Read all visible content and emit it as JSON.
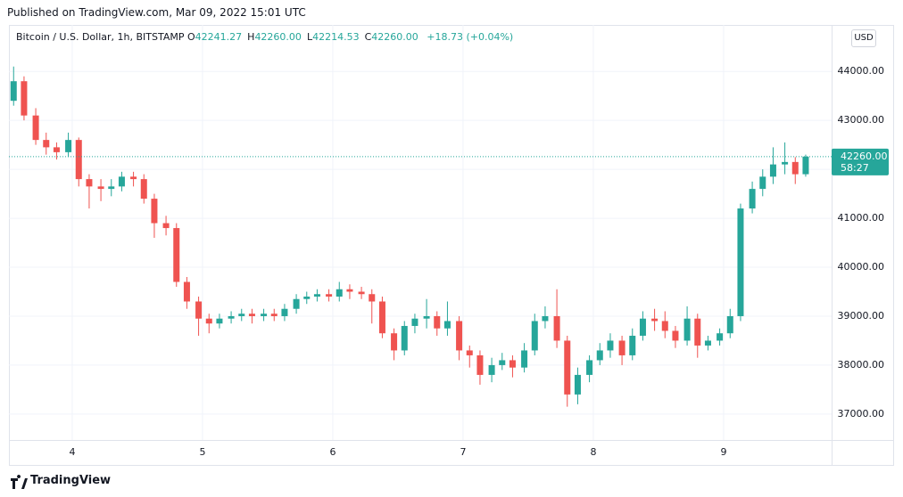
{
  "header": "Published on TradingView.com, Mar 09, 2022 15:01 UTC",
  "footer": "TradingView",
  "chart_data": {
    "type": "candlestick",
    "title": "Bitcoin / U.S. Dollar, 1h, BITSTAMP",
    "legend": [
      {
        "key": "O",
        "value": "42241.27"
      },
      {
        "key": "H",
        "value": "42260.00"
      },
      {
        "key": "L",
        "value": "42214.53"
      },
      {
        "key": "C",
        "value": "42260.00"
      }
    ],
    "change": "+18.73 (+0.04%)",
    "currency": "USD",
    "last_price": {
      "value": 42260,
      "label": "42260.00"
    },
    "countdown": "58:27",
    "up_color": "#26a69a",
    "down_color": "#ef5350",
    "grid": true,
    "x": [
      3.55,
      3.63,
      3.72,
      3.8,
      3.88,
      3.97,
      4.05,
      4.13,
      4.22,
      4.3,
      4.38,
      4.47,
      4.55,
      4.63,
      4.72,
      4.8,
      4.88,
      4.97,
      5.05,
      5.13,
      5.22,
      5.3,
      5.38,
      5.47,
      5.55,
      5.63,
      5.72,
      5.8,
      5.88,
      5.97,
      6.05,
      6.13,
      6.22,
      6.3,
      6.38,
      6.47,
      6.55,
      6.63,
      6.72,
      6.8,
      6.88,
      6.97,
      7.05,
      7.13,
      7.22,
      7.3,
      7.38,
      7.47,
      7.55,
      7.63,
      7.72,
      7.8,
      7.88,
      7.97,
      8.05,
      8.13,
      8.22,
      8.3,
      8.38,
      8.47,
      8.55,
      8.63,
      8.72,
      8.8,
      8.88,
      8.97,
      9.05,
      9.13,
      9.22,
      9.3,
      9.38,
      9.47,
      9.55,
      9.63
    ],
    "open": [
      43400,
      43800,
      43100,
      42600,
      42450,
      42350,
      42600,
      41800,
      41650,
      41600,
      41650,
      41850,
      41800,
      41400,
      40900,
      40800,
      39700,
      39300,
      38950,
      38850,
      38950,
      39000,
      39050,
      39000,
      39050,
      39000,
      39150,
      39350,
      39400,
      39450,
      39400,
      39550,
      39500,
      39450,
      39300,
      38650,
      38300,
      38800,
      38950,
      39000,
      38750,
      38900,
      38300,
      38200,
      37800,
      38000,
      38100,
      37950,
      38300,
      38900,
      39000,
      38500,
      37400,
      37800,
      38100,
      38300,
      38500,
      38200,
      38600,
      38950,
      38900,
      38700,
      38500,
      38950,
      38400,
      38500,
      38650,
      39000,
      41200,
      41600,
      41850,
      42100,
      42150,
      41900
    ],
    "high": [
      44100,
      43900,
      43250,
      42750,
      42550,
      42750,
      42650,
      41900,
      41800,
      41800,
      41950,
      41950,
      41900,
      41500,
      41050,
      40900,
      39800,
      39400,
      39050,
      39050,
      39100,
      39150,
      39150,
      39150,
      39150,
      39250,
      39450,
      39500,
      39550,
      39550,
      39700,
      39650,
      39600,
      39550,
      39400,
      38750,
      38900,
      39050,
      39350,
      39100,
      39300,
      39000,
      38400,
      38300,
      38150,
      38250,
      38200,
      38450,
      39050,
      39200,
      39550,
      38600,
      37950,
      38200,
      38450,
      38650,
      38600,
      38750,
      39100,
      39150,
      39100,
      38800,
      39200,
      39050,
      38600,
      38750,
      39150,
      41300,
      41750,
      42000,
      42450,
      42550,
      42250,
      42300
    ],
    "low": [
      43300,
      43000,
      42500,
      42300,
      42200,
      42250,
      41650,
      41200,
      41350,
      41450,
      41550,
      41650,
      41300,
      40600,
      40650,
      39600,
      39150,
      38600,
      38650,
      38750,
      38850,
      38900,
      38850,
      38900,
      38900,
      38900,
      39050,
      39250,
      39300,
      39300,
      39300,
      39350,
      39350,
      38850,
      38550,
      38100,
      38200,
      38650,
      38750,
      38600,
      38600,
      38100,
      37950,
      37600,
      37650,
      37900,
      37750,
      37850,
      38200,
      38750,
      38350,
      37150,
      37200,
      37650,
      38000,
      38150,
      38000,
      38100,
      38500,
      38700,
      38550,
      38350,
      38400,
      38150,
      38300,
      38400,
      38550,
      38900,
      41100,
      41450,
      41700,
      41900,
      41700,
      41850
    ],
    "close": [
      43800,
      43100,
      42600,
      42450,
      42350,
      42600,
      41800,
      41650,
      41600,
      41650,
      41850,
      41800,
      41400,
      40900,
      40800,
      39700,
      39300,
      38950,
      38850,
      38950,
      39000,
      39050,
      39000,
      39050,
      39000,
      39150,
      39350,
      39400,
      39450,
      39400,
      39550,
      39500,
      39450,
      39300,
      38650,
      38300,
      38800,
      38950,
      39000,
      38750,
      38900,
      38300,
      38200,
      37800,
      38000,
      38100,
      37950,
      38300,
      38900,
      39000,
      38500,
      37400,
      37800,
      38100,
      38300,
      38500,
      38200,
      38600,
      38950,
      38900,
      38700,
      38500,
      38950,
      38400,
      38500,
      38650,
      39000,
      41200,
      41600,
      41850,
      42100,
      42150,
      41900,
      42260
    ],
    "xlim": [
      3.514,
      9.829
    ],
    "xticks": [
      4,
      5,
      6,
      7,
      8,
      9
    ],
    "ylim": [
      36470,
      44950
    ],
    "yticks": [
      {
        "value": 37000,
        "label": "37000.00"
      },
      {
        "value": 38000,
        "label": "38000.00"
      },
      {
        "value": 39000,
        "label": "39000.00"
      },
      {
        "value": 40000,
        "label": "40000.00"
      },
      {
        "value": 41000,
        "label": "41000.00"
      },
      {
        "value": 42000,
        "label": "42000.00"
      },
      {
        "value": 43000,
        "label": "43000.00"
      },
      {
        "value": 44000,
        "label": "44000.00"
      }
    ]
  }
}
